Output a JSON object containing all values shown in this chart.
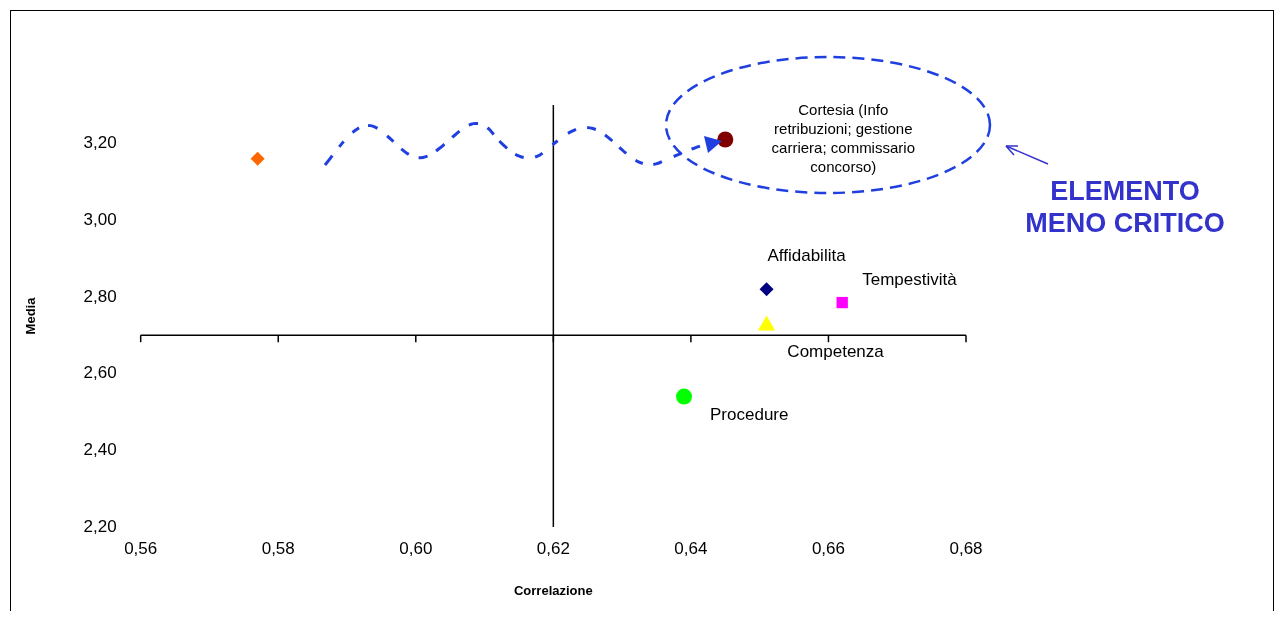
{
  "chart_data": {
    "type": "scatter",
    "xlabel": "Correlazione",
    "ylabel": "Media",
    "xlim": [
      0.56,
      0.68
    ],
    "ylim": [
      2.2,
      3.3
    ],
    "xticks": [
      {
        "value": 0.56,
        "label": "0,56"
      },
      {
        "value": 0.58,
        "label": "0,58"
      },
      {
        "value": 0.6,
        "label": "0,60"
      },
      {
        "value": 0.62,
        "label": "0,62"
      },
      {
        "value": 0.64,
        "label": "0,64"
      },
      {
        "value": 0.66,
        "label": "0,66"
      },
      {
        "value": 0.68,
        "label": "0,68"
      }
    ],
    "yticks": [
      {
        "value": 2.2,
        "label": "2,20"
      },
      {
        "value": 2.4,
        "label": "2,40"
      },
      {
        "value": 2.6,
        "label": "2,60"
      },
      {
        "value": 2.8,
        "label": "2,80"
      },
      {
        "value": 3.0,
        "label": "3,00"
      },
      {
        "value": 3.2,
        "label": "3,20"
      }
    ],
    "grid": false,
    "legend": false,
    "ref_lines": [
      {
        "axis": "x",
        "value": 0.62,
        "color": "#000000"
      },
      {
        "axis": "y",
        "value": 2.7,
        "color": "#000000"
      }
    ],
    "series": [
      {
        "color": "#ff6600",
        "marker": "diamond",
        "x": [
          0.577
        ],
        "values": [
          3.16
        ]
      },
      {
        "name": "Cortesia (Info\nretribuzioni; gestione\ncarriera; commissario\nconcorso)",
        "color": "#800000",
        "marker": "circle",
        "x": [
          0.645
        ],
        "values": [
          3.21
        ]
      },
      {
        "name": "Affidabilita",
        "color": "#000080",
        "marker": "diamond",
        "x": [
          0.651
        ],
        "values": [
          2.82
        ]
      },
      {
        "name": "Tempestività",
        "color": "#ff00ff",
        "marker": "square",
        "x": [
          0.662
        ],
        "values": [
          2.785
        ]
      },
      {
        "name": "Competenza",
        "color": "#ffff00",
        "marker": "triangle",
        "x": [
          0.651
        ],
        "values": [
          2.725
        ]
      },
      {
        "name": "Procedure",
        "color": "#00ff00",
        "marker": "circle",
        "x": [
          0.639
        ],
        "values": [
          2.54
        ]
      }
    ],
    "annotations": [
      "ELEMENTO\nMENO CRITICO"
    ]
  }
}
